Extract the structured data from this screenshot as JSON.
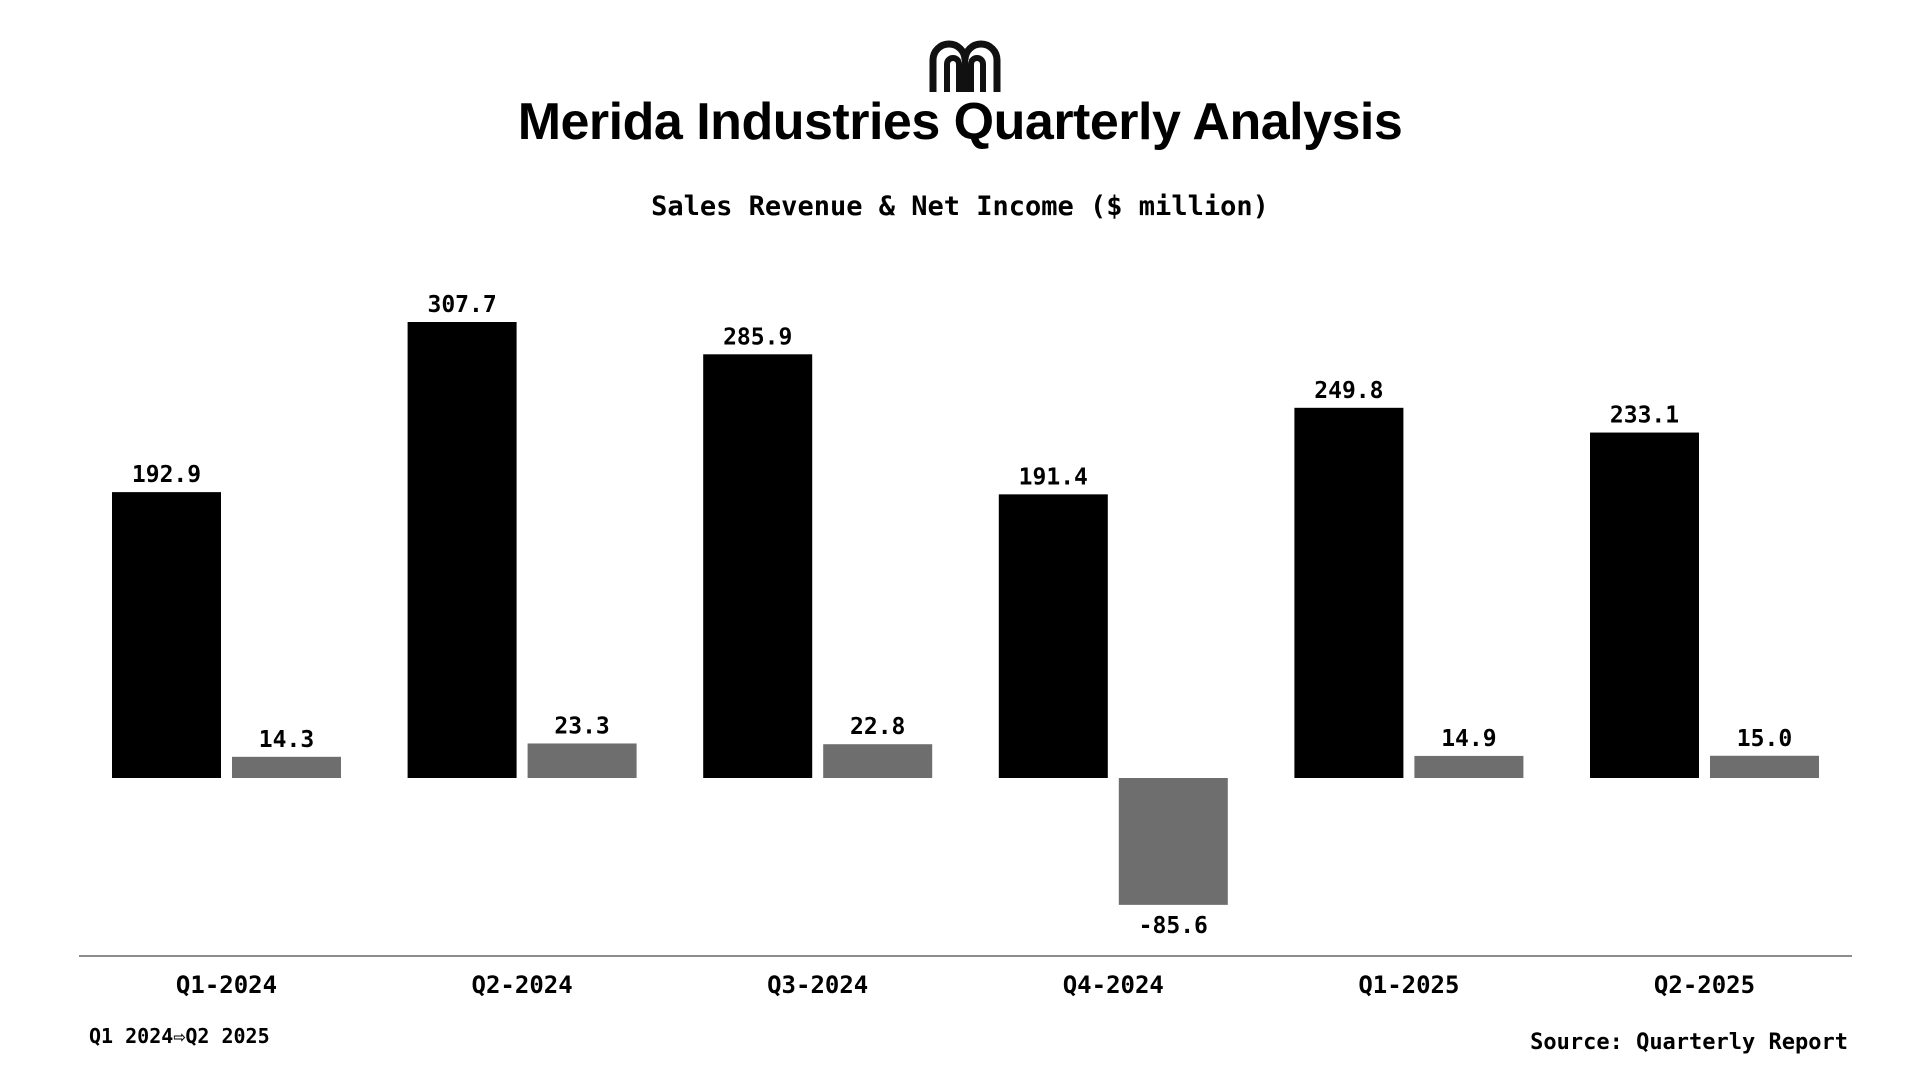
{
  "logo": {
    "icon": "merida-arch-logo-icon"
  },
  "chart_data": {
    "type": "bar",
    "title": "Merida Industries Quarterly Analysis",
    "subtitle": "Sales Revenue & Net Income ($ million)",
    "xlabel": "",
    "ylabel": "",
    "categories": [
      "Q1-2024",
      "Q2-2024",
      "Q3-2024",
      "Q4-2024",
      "Q1-2025",
      "Q2-2025"
    ],
    "series": [
      {
        "values": [
          192.9,
          307.7,
          285.9,
          191.4,
          249.8,
          233.1
        ],
        "color": "#000000"
      },
      {
        "values": [
          14.3,
          23.3,
          22.8,
          -85.6,
          14.9,
          15.0
        ],
        "color": "#6e6e6e"
      }
    ],
    "ylim": [
      -120,
      320
    ],
    "grid": false,
    "data_labels": true
  },
  "footer": {
    "period": "Q1 2024⇨Q2 2025",
    "source": "Source: Quarterly Report"
  }
}
